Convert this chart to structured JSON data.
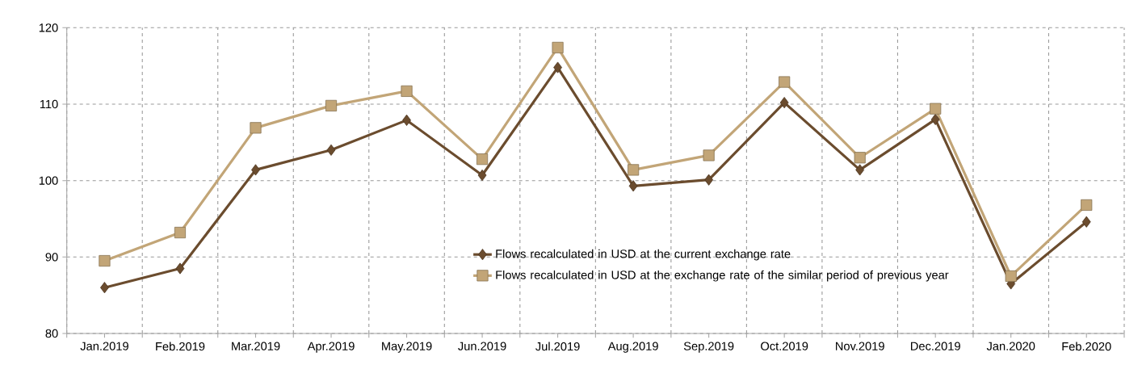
{
  "chart_data": {
    "type": "line",
    "categories": [
      "Jan.2019",
      "Feb.2019",
      "Mar.2019",
      "Apr.2019",
      "May.2019",
      "Jun.2019",
      "Jul.2019",
      "Aug.2019",
      "Sep.2019",
      "Oct.2019",
      "Nov.2019",
      "Dec.2019",
      "Jan.2020",
      "Feb.2020"
    ],
    "series": [
      {
        "name": "Flows recalculated in USD at the current exchange rate",
        "color": "#6b4c2e",
        "marker": "diamond",
        "values": [
          86.0,
          88.5,
          101.4,
          104.0,
          107.9,
          100.7,
          114.8,
          99.3,
          100.1,
          110.2,
          101.4,
          108.0,
          86.5,
          94.6
        ]
      },
      {
        "name": "Flows recalculated in USD at the exchange rate of the similar period of previous year",
        "color": "#c2a577",
        "marker": "square",
        "values": [
          89.5,
          93.2,
          106.9,
          109.8,
          111.7,
          102.8,
          117.4,
          101.4,
          103.3,
          112.9,
          103.0,
          109.4,
          87.5,
          96.8
        ]
      }
    ],
    "ylim": [
      80,
      120
    ],
    "yticks": [
      80,
      90,
      100,
      110,
      120
    ],
    "grid": true,
    "legend": "bottom",
    "line_style": "solid"
  }
}
